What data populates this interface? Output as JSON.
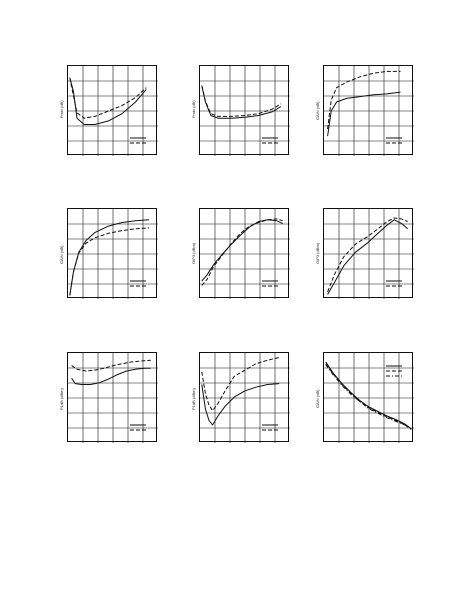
{
  "colors": {
    "line": "#111111",
    "grid": "#111111",
    "background": "#ffffff"
  },
  "chart_data": [
    {
      "type": "line",
      "ylabel": "Fmin (dB)",
      "grid": true,
      "legend_placement": "bottom-right",
      "xlim": [
        0,
        100
      ],
      "ylim": [
        0,
        100
      ],
      "series": [
        {
          "style": "solid",
          "x": [
            2,
            6,
            10,
            18,
            30,
            45,
            60,
            75,
            87
          ],
          "y": [
            87,
            72,
            42,
            35,
            35,
            39,
            47,
            60,
            74
          ]
        },
        {
          "style": "dashed",
          "x": [
            2,
            6,
            10,
            18,
            30,
            45,
            60,
            75,
            87
          ],
          "y": [
            87,
            67,
            48,
            42,
            44,
            50,
            56,
            65,
            76
          ]
        }
      ]
    },
    {
      "type": "line",
      "ylabel": "Fmin (dB)",
      "grid": true,
      "legend_placement": "bottom-right",
      "xlim": [
        0,
        100
      ],
      "ylim": [
        0,
        100
      ],
      "series": [
        {
          "style": "solid",
          "x": [
            2,
            6,
            12,
            20,
            35,
            50,
            65,
            80,
            90
          ],
          "y": [
            78,
            60,
            45,
            42,
            42,
            43,
            45,
            49,
            55
          ]
        },
        {
          "style": "dashed",
          "x": [
            2,
            6,
            12,
            20,
            35,
            50,
            65,
            80,
            90
          ],
          "y": [
            78,
            61,
            47,
            44,
            44,
            45,
            47,
            52,
            58
          ]
        }
      ]
    },
    {
      "type": "line",
      "ylabel": "GA/N (dB)",
      "grid": true,
      "legend_placement": "bottom-right",
      "xlim": [
        0,
        100
      ],
      "ylim": [
        0,
        100
      ],
      "series": [
        {
          "style": "solid",
          "x": [
            4,
            8,
            14,
            25,
            40,
            55,
            70,
            85
          ],
          "y": [
            22,
            50,
            60,
            64,
            66,
            68,
            69,
            71
          ]
        },
        {
          "style": "dashed",
          "x": [
            4,
            8,
            14,
            25,
            40,
            55,
            70,
            85
          ],
          "y": [
            30,
            62,
            76,
            82,
            88,
            92,
            94,
            94
          ]
        }
      ]
    },
    {
      "type": "line",
      "ylabel": "GA/N (dB)",
      "grid": true,
      "legend_placement": "bottom-right",
      "xlim": [
        0,
        100
      ],
      "ylim": [
        0,
        100
      ],
      "series": [
        {
          "style": "solid",
          "x": [
            2,
            6,
            12,
            20,
            30,
            45,
            60,
            75,
            90
          ],
          "y": [
            4,
            30,
            52,
            65,
            74,
            81,
            85,
            87,
            88
          ]
        },
        {
          "style": "dashed",
          "x": [
            2,
            6,
            12,
            20,
            30,
            45,
            60,
            75,
            90
          ],
          "y": [
            4,
            30,
            51,
            62,
            68,
            73,
            76,
            78,
            79
          ]
        }
      ]
    },
    {
      "type": "line",
      "ylabel": "OIP3 (dBm)",
      "grid": true,
      "legend_placement": "bottom-right",
      "xlim": [
        0,
        100
      ],
      "ylim": [
        0,
        100
      ],
      "series": [
        {
          "style": "solid",
          "x": [
            2,
            8,
            15,
            25,
            35,
            45,
            55,
            65,
            75,
            85,
            92
          ],
          "y": [
            20,
            27,
            38,
            50,
            61,
            71,
            80,
            86,
            88,
            87,
            84
          ]
        },
        {
          "style": "dashed",
          "x": [
            2,
            8,
            15,
            25,
            35,
            45,
            55,
            65,
            75,
            85,
            92
          ],
          "y": [
            15,
            22,
            36,
            49,
            62,
            73,
            81,
            85,
            88,
            89,
            87
          ]
        }
      ]
    },
    {
      "type": "line",
      "ylabel": "OIP3 (dBm)",
      "grid": true,
      "legend_placement": "bottom-right",
      "xlim": [
        0,
        100
      ],
      "ylim": [
        0,
        100
      ],
      "series": [
        {
          "style": "solid",
          "x": [
            4,
            12,
            22,
            35,
            48,
            60,
            70,
            78,
            86,
            93
          ],
          "y": [
            5,
            19,
            37,
            52,
            62,
            73,
            82,
            88,
            84,
            78
          ]
        },
        {
          "style": "dashed",
          "x": [
            4,
            12,
            22,
            35,
            48,
            60,
            70,
            78,
            86,
            93
          ],
          "y": [
            8,
            28,
            47,
            61,
            69,
            78,
            86,
            90,
            89,
            86
          ]
        }
      ]
    },
    {
      "type": "line",
      "ylabel": "P1dB (dBm)",
      "grid": true,
      "legend_placement": "bottom-right",
      "xlim": [
        0,
        100
      ],
      "ylim": [
        0,
        100
      ],
      "series": [
        {
          "style": "solid",
          "x": [
            4,
            8,
            15,
            25,
            35,
            45,
            55,
            65,
            75,
            85,
            92
          ],
          "y": [
            72,
            66,
            65,
            65,
            67,
            71,
            76,
            80,
            82,
            83,
            83
          ]
        },
        {
          "style": "dashed",
          "x": [
            4,
            10,
            20,
            30,
            40,
            50,
            60,
            70,
            80,
            92
          ],
          "y": [
            86,
            82,
            80,
            81,
            83,
            86,
            88,
            90,
            91,
            92
          ]
        }
      ]
    },
    {
      "type": "line",
      "ylabel": "P1dB (dBm)",
      "grid": true,
      "legend_placement": "bottom-right",
      "xlim": [
        0,
        100
      ],
      "ylim": [
        0,
        100
      ],
      "series": [
        {
          "style": "solid",
          "x": [
            2,
            6,
            10,
            14,
            20,
            28,
            38,
            50,
            62,
            75,
            88
          ],
          "y": [
            65,
            38,
            25,
            20,
            30,
            41,
            51,
            58,
            62,
            65,
            66
          ]
        },
        {
          "style": "dashed",
          "x": [
            2,
            6,
            10,
            14,
            20,
            28,
            38,
            50,
            62,
            75,
            88
          ],
          "y": [
            79,
            55,
            42,
            36,
            44,
            58,
            74,
            81,
            88,
            92,
            95
          ]
        }
      ]
    },
    {
      "type": "line",
      "ylabel": "GA/N (dB)",
      "grid": true,
      "legend_placement": "top-right",
      "xlim": [
        0,
        100
      ],
      "ylim": [
        0,
        100
      ],
      "series": [
        {
          "style": "solid",
          "x": [
            2,
            10,
            20,
            30,
            40,
            50,
            60,
            70,
            80,
            90,
            97
          ],
          "y": [
            90,
            78,
            66,
            56,
            47,
            40,
            35,
            30,
            26,
            21,
            16
          ]
        },
        {
          "style": "dashed",
          "x": [
            2,
            10,
            20,
            30,
            40,
            50,
            60,
            70,
            80,
            90,
            97
          ],
          "y": [
            88,
            77,
            65,
            55,
            46,
            39,
            34,
            29,
            25,
            20,
            15
          ]
        },
        {
          "style": "dashdot",
          "x": [
            2,
            10,
            20,
            30,
            40,
            50,
            60,
            70,
            80,
            90,
            97
          ],
          "y": [
            87,
            76,
            64,
            54,
            46,
            38,
            33,
            28,
            24,
            20,
            16
          ]
        }
      ]
    }
  ]
}
